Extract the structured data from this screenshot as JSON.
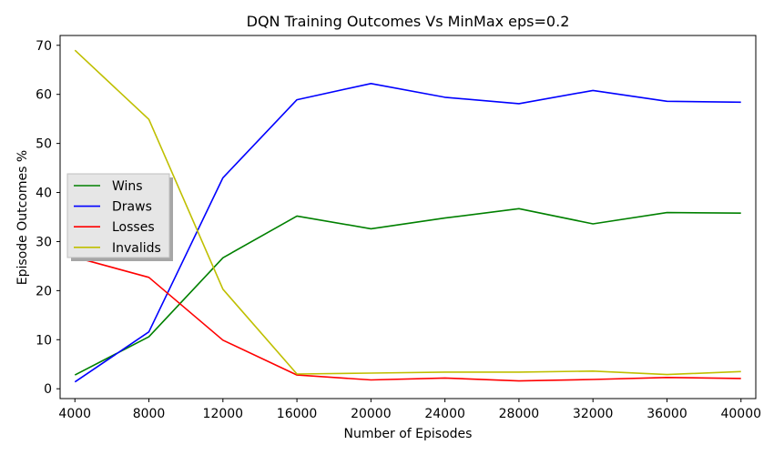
{
  "chart_data": {
    "type": "line",
    "title": "DQN Training Outcomes Vs MinMax eps=0.2",
    "xlabel": "Number of Episodes",
    "ylabel": "Episode Outcomes %",
    "x": [
      4000,
      8000,
      12000,
      16000,
      20000,
      24000,
      28000,
      32000,
      36000,
      40000
    ],
    "x_ticks": [
      "4000",
      "8000",
      "12000",
      "16000",
      "20000",
      "24000",
      "28000",
      "32000",
      "36000",
      "40000"
    ],
    "xlim": [
      3200,
      40800
    ],
    "ylim": [
      -2,
      72
    ],
    "y_ticks": [
      "0",
      "10",
      "20",
      "30",
      "40",
      "50",
      "60",
      "70"
    ],
    "grid": false,
    "legend_position": "center-left",
    "series": [
      {
        "name": "Wins",
        "color": "#008000",
        "values": [
          2.8,
          10.6,
          26.7,
          35.2,
          32.6,
          34.8,
          36.7,
          33.6,
          35.9,
          35.8
        ]
      },
      {
        "name": "Draws",
        "color": "#0000ff",
        "values": [
          1.4,
          11.6,
          43.0,
          58.9,
          62.2,
          59.4,
          58.1,
          60.8,
          58.6,
          58.4
        ]
      },
      {
        "name": "Losses",
        "color": "#ff0000",
        "values": [
          26.8,
          22.7,
          9.9,
          2.8,
          1.8,
          2.2,
          1.6,
          1.9,
          2.3,
          2.1
        ]
      },
      {
        "name": "Invalids",
        "color": "#bfbf00",
        "values": [
          69.0,
          54.9,
          20.3,
          3.0,
          3.2,
          3.4,
          3.4,
          3.6,
          2.9,
          3.5
        ]
      }
    ]
  }
}
